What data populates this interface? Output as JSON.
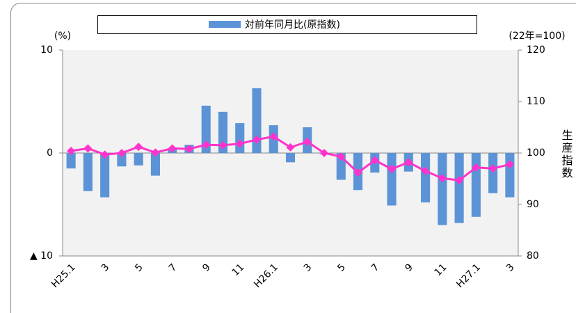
{
  "chart_data": {
    "type": "bar-line",
    "categories": [
      "H25.1",
      null,
      "3",
      null,
      "5",
      null,
      "7",
      null,
      "9",
      null,
      "11",
      null,
      "H26.1",
      null,
      "3",
      null,
      "5",
      null,
      "7",
      null,
      "9",
      null,
      "11",
      null,
      "H27.1",
      null,
      "3"
    ],
    "series": [
      {
        "name": "対前年同月比(原指数)",
        "type": "bar",
        "color": "#5b93d6",
        "values": [
          -1.5,
          -3.7,
          -4.3,
          -1.3,
          -1.2,
          -2.2,
          0.5,
          0.8,
          4.6,
          4.0,
          2.9,
          6.3,
          2.7,
          -0.9,
          2.5,
          -0.1,
          -2.6,
          -3.6,
          -1.9,
          -5.1,
          -1.8,
          -4.8,
          -7.0,
          -6.8,
          -6.2,
          -3.9,
          -4.3
        ]
      },
      {
        "type": "line",
        "axis": "y2",
        "color": "#ff33cc",
        "values": [
          100.4,
          100.9,
          99.7,
          100.0,
          101.2,
          100.1,
          100.9,
          100.8,
          101.6,
          101.5,
          101.8,
          102.6,
          103.2,
          101.1,
          102.2,
          100.0,
          99.3,
          96.2,
          98.6,
          96.9,
          98.2,
          96.5,
          95.1,
          94.7,
          97.2,
          97.0,
          97.8
        ]
      }
    ],
    "y_label": "(%)",
    "y2_label": "(22年=100)",
    "y2_title": "生産指数",
    "ylim": [
      -10,
      10
    ],
    "yticks": [
      {
        "value": -10,
        "label": "▲ 10"
      },
      0,
      10
    ],
    "y2lim": [
      80,
      120
    ],
    "y2ticks": [
      80,
      90,
      100,
      110,
      120
    ],
    "legend": "top"
  }
}
